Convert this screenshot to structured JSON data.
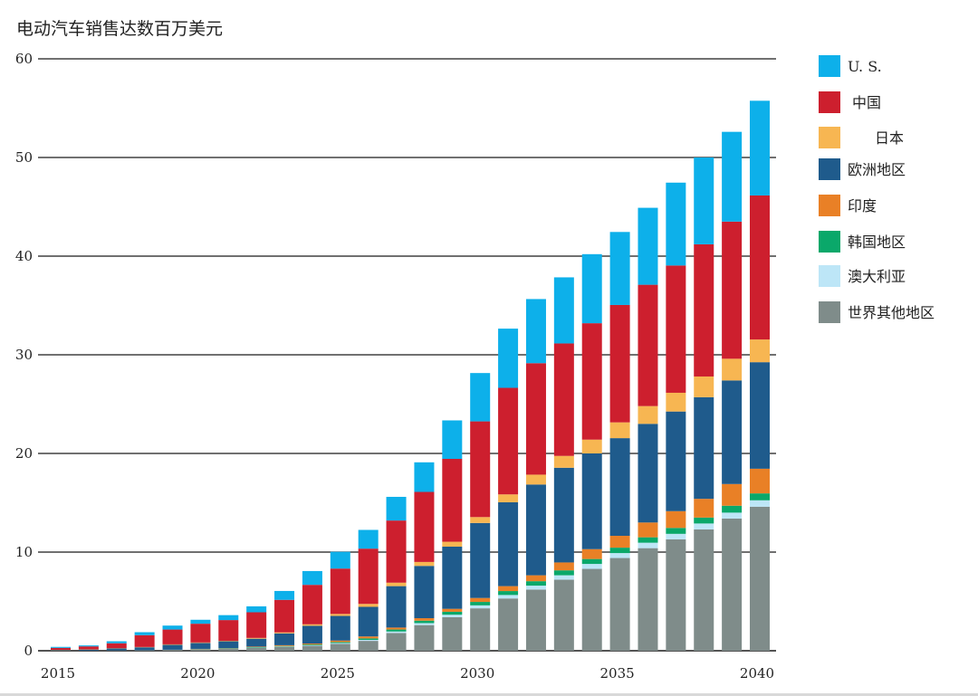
{
  "chart_data": {
    "type": "bar",
    "stacked": true,
    "title": "电动汽车销售达数百万美元",
    "xlabel": "",
    "ylabel": "",
    "ylim": [
      0,
      60
    ],
    "yticks": [
      0,
      10,
      20,
      30,
      40,
      50,
      60
    ],
    "x_tick_labels": [
      "2015",
      "2020",
      "2025",
      "2030",
      "2035",
      "2040"
    ],
    "grid": "horizontal",
    "legend_position": "right",
    "categories": [
      2015,
      2016,
      2017,
      2018,
      2019,
      2020,
      2021,
      2022,
      2023,
      2024,
      2025,
      2026,
      2027,
      2028,
      2029,
      2030,
      2031,
      2032,
      2033,
      2034,
      2035,
      2036,
      2037,
      2038,
      2039,
      2040
    ],
    "series": [
      {
        "name": "世界其他地区",
        "color": "#7f8c8a",
        "values": [
          0.02,
          0.02,
          0.03,
          0.05,
          0.1,
          0.15,
          0.2,
          0.3,
          0.4,
          0.5,
          0.7,
          1.0,
          1.8,
          2.6,
          3.4,
          4.3,
          5.3,
          6.2,
          7.2,
          8.3,
          9.4,
          10.4,
          11.3,
          12.3,
          13.4,
          14.6
        ]
      },
      {
        "name": "澳大利亚",
        "color": "#bde6f7",
        "values": [
          0,
          0,
          0,
          0,
          0,
          0,
          0,
          0.02,
          0.03,
          0.05,
          0.08,
          0.1,
          0.15,
          0.2,
          0.25,
          0.3,
          0.35,
          0.4,
          0.45,
          0.5,
          0.5,
          0.55,
          0.55,
          0.6,
          0.6,
          0.65
        ]
      },
      {
        "name": "韩国地区",
        "color": "#0aa86a",
        "values": [
          0,
          0,
          0,
          0,
          0,
          0.02,
          0.03,
          0.05,
          0.05,
          0.08,
          0.1,
          0.15,
          0.2,
          0.25,
          0.3,
          0.35,
          0.4,
          0.45,
          0.5,
          0.5,
          0.55,
          0.55,
          0.6,
          0.6,
          0.7,
          0.7
        ]
      },
      {
        "name": "印度",
        "color": "#e98026",
        "values": [
          0,
          0,
          0,
          0,
          0,
          0.02,
          0.03,
          0.05,
          0.08,
          0.1,
          0.15,
          0.2,
          0.2,
          0.25,
          0.3,
          0.4,
          0.5,
          0.6,
          0.8,
          1.0,
          1.2,
          1.5,
          1.7,
          1.9,
          2.2,
          2.5
        ]
      },
      {
        "name": "欧洲地区",
        "color": "#1f5b8c",
        "values": [
          0.05,
          0.1,
          0.2,
          0.3,
          0.5,
          0.6,
          0.7,
          0.8,
          1.2,
          1.8,
          2.5,
          3.0,
          4.2,
          5.3,
          6.3,
          7.6,
          8.5,
          9.2,
          9.6,
          9.7,
          9.9,
          10.0,
          10.1,
          10.3,
          10.5,
          10.8
        ]
      },
      {
        "name": "日本",
        "color": "#f7b652",
        "values": [
          0.02,
          0.02,
          0.03,
          0.03,
          0.05,
          0.05,
          0.05,
          0.08,
          0.1,
          0.15,
          0.2,
          0.3,
          0.35,
          0.4,
          0.5,
          0.6,
          0.8,
          1.0,
          1.2,
          1.4,
          1.6,
          1.8,
          1.9,
          2.1,
          2.2,
          2.3
        ]
      },
      {
        "name": "中国",
        "color": "#cd1f2e",
        "values": [
          0.2,
          0.3,
          0.5,
          1.2,
          1.5,
          1.9,
          2.1,
          2.6,
          3.3,
          4.0,
          4.6,
          5.6,
          6.3,
          7.1,
          8.4,
          9.7,
          10.8,
          11.3,
          11.4,
          11.8,
          11.9,
          12.3,
          12.9,
          13.4,
          13.9,
          14.6
        ]
      },
      {
        "name": "U. S.",
        "color": "#0db0ea",
        "values": [
          0.1,
          0.1,
          0.2,
          0.3,
          0.4,
          0.4,
          0.5,
          0.6,
          0.9,
          1.4,
          1.7,
          1.9,
          2.4,
          3.0,
          3.9,
          4.9,
          6.0,
          6.5,
          6.7,
          7.0,
          7.4,
          7.8,
          8.4,
          8.8,
          9.1,
          9.6
        ]
      }
    ],
    "legend": [
      {
        "label": "U. S.",
        "color": "#0db0ea"
      },
      {
        "label": "中国",
        "color": "#cd1f2e"
      },
      {
        "label": "日本",
        "color": "#f7b652"
      },
      {
        "label": "欧洲地区",
        "color": "#1f5b8c"
      },
      {
        "label": "印度",
        "color": "#e98026"
      },
      {
        "label": "韩国地区",
        "color": "#0aa86a"
      },
      {
        "label": "澳大利亚",
        "color": "#bde6f7"
      },
      {
        "label": "世界其他地区",
        "color": "#7f8c8a"
      }
    ]
  }
}
